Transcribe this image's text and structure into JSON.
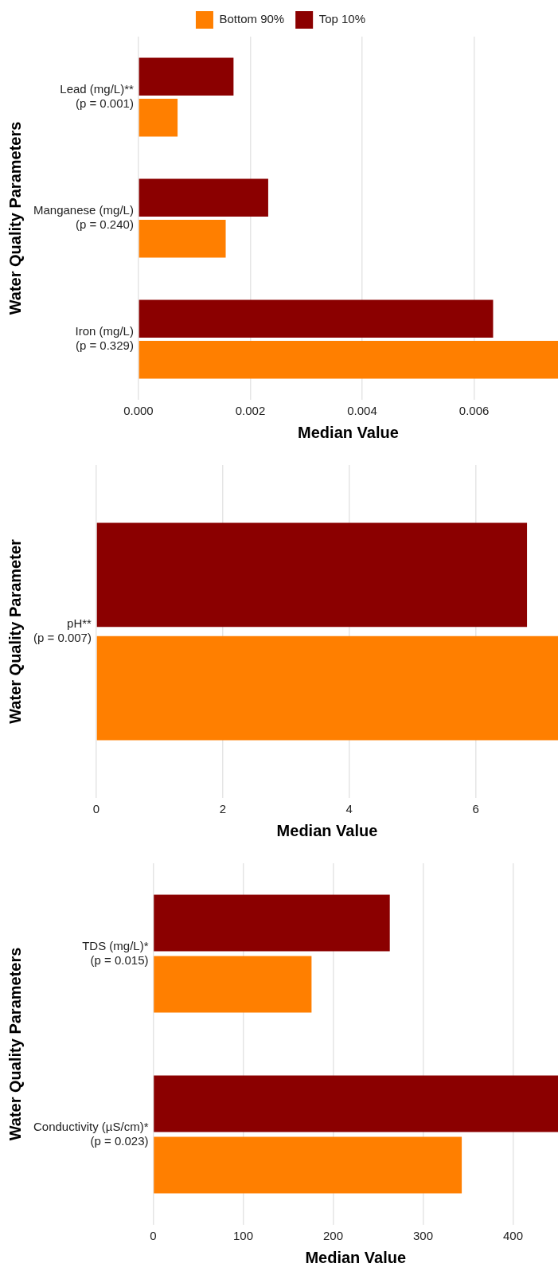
{
  "chart_data": [
    {
      "type": "bar",
      "orientation": "horizontal",
      "categories": [
        "Lead (mg/L)**\n(p = 0.001)",
        "Manganese (mg/L)\n(p = 0.240)",
        "Iron (mg/L)\n(p = 0.329)"
      ],
      "series": [
        {
          "name": "Top 10%",
          "color": "#8b0000",
          "values": [
            0.0017,
            0.00232,
            0.00634
          ]
        },
        {
          "name": "Bottom 90%",
          "color": "#ff7f00",
          "values": [
            0.0007,
            0.00156,
            0.0075
          ]
        }
      ],
      "xlim": [
        0,
        0.0075
      ],
      "xticks": [
        {
          "value": 0,
          "label": "0.000"
        },
        {
          "value": 0.002,
          "label": "0.002"
        },
        {
          "value": 0.004,
          "label": "0.004"
        },
        {
          "value": 0.006,
          "label": "0.006"
        }
      ],
      "xlabel": "Median Value",
      "ylabel": "Water Quality Parameters",
      "grid": "x",
      "legend": "top"
    },
    {
      "type": "bar",
      "orientation": "horizontal",
      "categories": [
        "pH**\n(p = 0.007)"
      ],
      "series": [
        {
          "color": "#8b0000",
          "values": [
            6.81
          ]
        },
        {
          "color": "#ff7f00",
          "values": [
            7.3
          ]
        }
      ],
      "xlim": [
        0,
        7.3
      ],
      "xticks": [
        0,
        2,
        4,
        6
      ],
      "xlabel": "Median Value",
      "ylabel": "Water Quality Parameter",
      "grid": "x"
    },
    {
      "type": "bar",
      "orientation": "horizontal",
      "categories": [
        "TDS (mg/L)*\n(p = 0.015)",
        "Conductivity (µS/cm)*\n(p = 0.023)"
      ],
      "series": [
        {
          "color": "#8b0000",
          "values": [
            263,
            450
          ]
        },
        {
          "color": "#ff7f00",
          "values": [
            176,
            343
          ]
        }
      ],
      "xlim": [
        0,
        450
      ],
      "xticks": [
        0,
        100,
        200,
        300,
        400
      ],
      "xlabel": "Median Value",
      "ylabel": "Water Quality Parameters",
      "grid": "x"
    }
  ]
}
